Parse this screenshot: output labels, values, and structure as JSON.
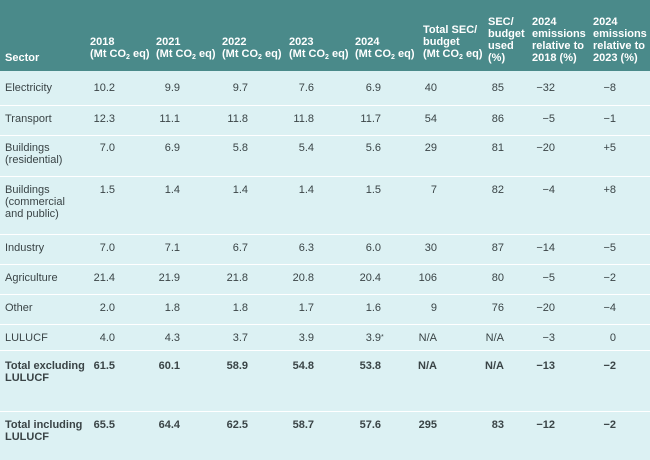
{
  "headers": {
    "sector": "Sector",
    "y2018": [
      "2018",
      "(Mt CO",
      "2",
      " eq)"
    ],
    "y2021": [
      "2021",
      "(Mt CO",
      "2",
      " eq)"
    ],
    "y2022": [
      "2022",
      "(Mt CO",
      "2",
      " eq)"
    ],
    "y2023": [
      "2023",
      "(Mt CO",
      "2",
      " eq)"
    ],
    "y2024": [
      "2024",
      "(Mt CO",
      "2",
      " eq)"
    ],
    "total_sec": [
      "Total SEC/",
      "budget",
      "(Mt CO",
      "2",
      " eq)"
    ],
    "sec_used": [
      "SEC/",
      "budget",
      "used",
      "(%)"
    ],
    "rel2018": [
      "2024",
      "emissions",
      "relative to",
      "2018 (%)"
    ],
    "rel2023": [
      "2024",
      "emissions",
      "relative to",
      "2023 (%)"
    ]
  },
  "rows": [
    {
      "sector": "Electricity",
      "v": [
        "10.2",
        "9.9",
        "9.7",
        "7.6",
        "6.9",
        "40",
        "85",
        "−32",
        "−8"
      ]
    },
    {
      "sector": "Transport",
      "v": [
        "12.3",
        "11.1",
        "11.8",
        "11.8",
        "11.7",
        "54",
        "86",
        "−5",
        "−1"
      ]
    },
    {
      "sector": "Buildings (residential)",
      "v": [
        "7.0",
        "6.9",
        "5.8",
        "5.4",
        "5.6",
        "29",
        "81",
        "−20",
        "+5"
      ]
    },
    {
      "sector": "Buildings (commercial and public)",
      "v": [
        "1.5",
        "1.4",
        "1.4",
        "1.4",
        "1.5",
        "7",
        "82",
        "−4",
        "+8"
      ]
    },
    {
      "sector": "Industry",
      "v": [
        "7.0",
        "7.1",
        "6.7",
        "6.3",
        "6.0",
        "30",
        "87",
        "−14",
        "−5"
      ]
    },
    {
      "sector": "Agriculture",
      "v": [
        "21.4",
        "21.9",
        "21.8",
        "20.8",
        "20.4",
        "106",
        "80",
        "−5",
        "−2"
      ]
    },
    {
      "sector": "Other",
      "v": [
        "2.0",
        "1.8",
        "1.8",
        "1.7",
        "1.6",
        "9",
        "76",
        "−20",
        "−4"
      ]
    },
    {
      "sector": "LULUCF",
      "v": [
        "4.0",
        "4.3",
        "3.7",
        "3.9",
        "3.9",
        "N/A",
        "N/A",
        "−3",
        "0"
      ],
      "note": "*"
    },
    {
      "sector": "Total excluding LULUCF",
      "v": [
        "61.5",
        "60.1",
        "58.9",
        "54.8",
        "53.8",
        "N/A",
        "N/A",
        "−13",
        "−2"
      ]
    },
    {
      "sector": "Total including LULUCF",
      "v": [
        "65.5",
        "64.4",
        "62.5",
        "58.7",
        "57.6",
        "295",
        "83",
        "−12",
        "−2"
      ]
    }
  ]
}
